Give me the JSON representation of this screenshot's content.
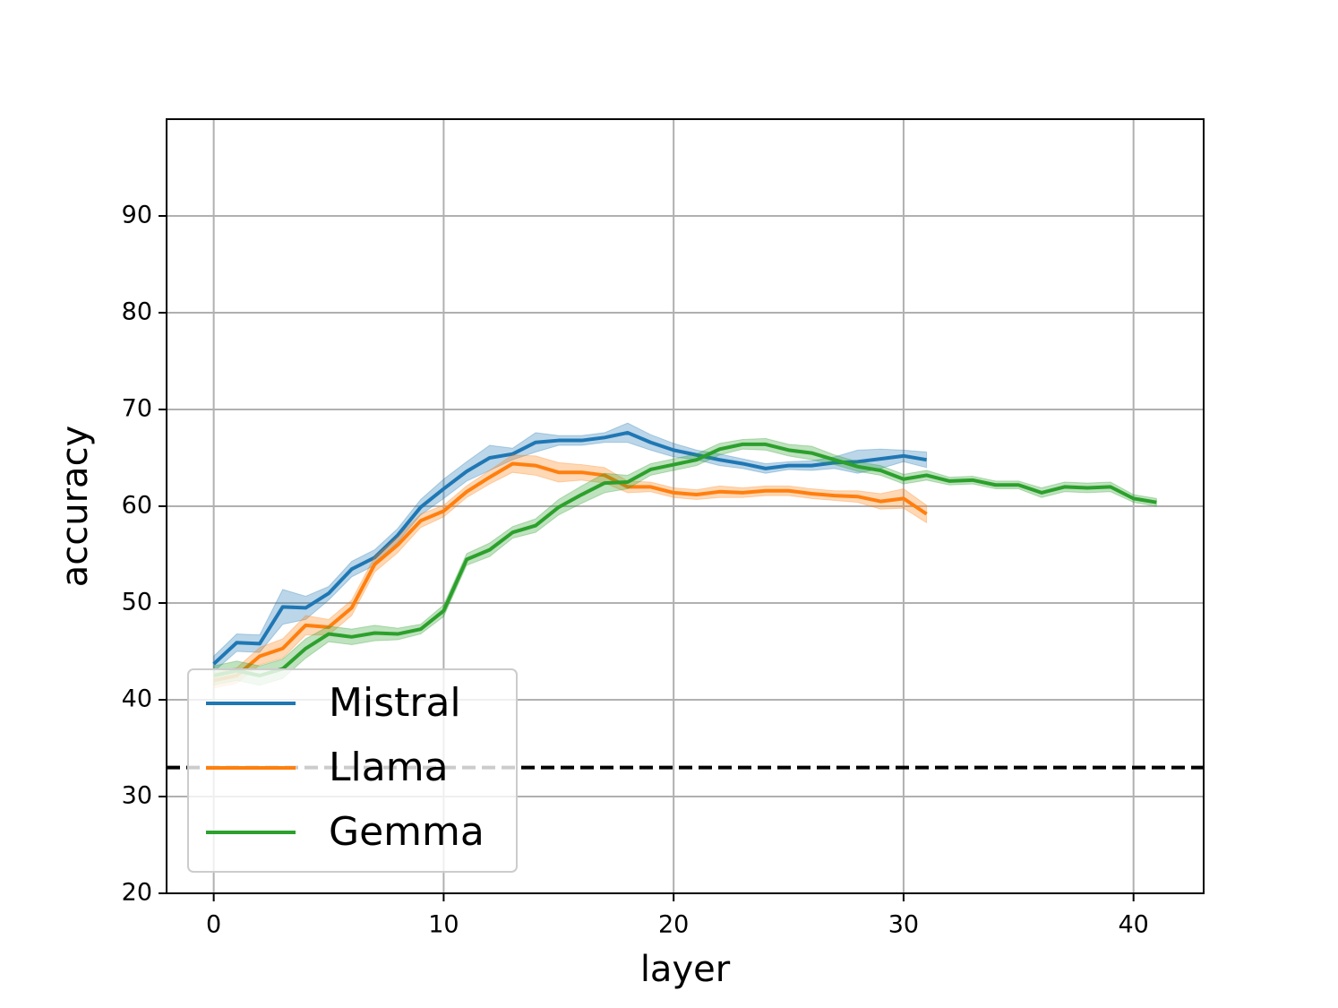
{
  "chart_data": {
    "type": "line",
    "x_label": "layer",
    "y_label": "accuracy",
    "x": [
      0,
      1,
      2,
      3,
      4,
      5,
      6,
      7,
      8,
      9,
      10,
      11,
      12,
      13,
      14,
      15,
      16,
      17,
      18,
      19,
      20,
      21,
      22,
      23,
      24,
      25,
      26,
      27,
      28,
      29,
      30,
      31,
      32,
      33,
      34,
      35,
      36,
      37,
      38,
      39,
      40,
      41
    ],
    "series": [
      {
        "name": "Mistral",
        "color": "#1f77b4",
        "values": [
          43.7,
          45.9,
          45.8,
          49.6,
          49.5,
          51,
          53.5,
          54.7,
          57,
          59.9,
          61.8,
          63.6,
          65,
          65.4,
          66.6,
          66.8,
          66.8,
          67.1,
          67.6,
          66.6,
          65.8,
          65.3,
          64.8,
          64.4,
          63.9,
          64.2,
          64.2,
          64.5,
          64.6,
          64.9,
          65.2,
          64.8,
          null,
          null,
          null,
          null,
          null,
          null,
          null,
          null,
          null,
          null
        ],
        "errors": [
          0.8,
          0.9,
          0.9,
          1.8,
          1.2,
          0.7,
          0.8,
          0.8,
          0.7,
          0.8,
          1,
          1,
          1.3,
          0.6,
          1,
          0.5,
          0.5,
          0.5,
          1,
          0.8,
          0.7,
          0.5,
          0.6,
          0.5,
          0.5,
          0.4,
          0.5,
          0.6,
          1.2,
          1,
          0.6,
          0.8,
          null,
          null,
          null,
          null,
          null,
          null,
          null,
          null,
          null,
          null
        ]
      },
      {
        "name": "Llama",
        "color": "#ff7f0e",
        "values": [
          42,
          42.5,
          44.5,
          45.3,
          47.7,
          47.5,
          49.5,
          54,
          56,
          58.5,
          59.5,
          61.5,
          63,
          64.4,
          64.2,
          63.5,
          63.5,
          63.2,
          62,
          62,
          61.4,
          61.2,
          61.5,
          61.4,
          61.6,
          61.6,
          61.3,
          61.1,
          61,
          60.5,
          60.8,
          59.2,
          null,
          null,
          null,
          null,
          null,
          null,
          null,
          null,
          null,
          null
        ],
        "errors": [
          0.8,
          0.8,
          0.9,
          1,
          1,
          0.8,
          0.8,
          0.8,
          0.8,
          0.7,
          0.6,
          0.6,
          0.7,
          0.9,
          1,
          1,
          0.8,
          0.8,
          0.6,
          0.5,
          0.5,
          0.5,
          0.6,
          0.5,
          0.5,
          0.5,
          0.5,
          0.5,
          0.6,
          0.8,
          1,
          0.9,
          null,
          null,
          null,
          null,
          null,
          null,
          null,
          null,
          null,
          null
        ]
      },
      {
        "name": "Gemma",
        "color": "#2ca02c",
        "values": [
          42.5,
          43,
          42.5,
          43.2,
          45.3,
          46.8,
          46.5,
          46.9,
          46.8,
          47.3,
          49.2,
          54.5,
          55.5,
          57.3,
          58,
          59.9,
          61.2,
          62.4,
          62.5,
          63.8,
          64.3,
          64.8,
          65.9,
          66.4,
          66.4,
          65.8,
          65.5,
          64.8,
          64.1,
          63.7,
          62.8,
          63.2,
          62.6,
          62.7,
          62.2,
          62.2,
          61.4,
          62,
          61.9,
          62,
          60.8,
          60.4
        ],
        "errors": [
          1,
          1,
          1,
          1,
          1,
          0.8,
          0.8,
          0.8,
          0.6,
          0.5,
          0.6,
          0.6,
          0.7,
          0.6,
          0.7,
          0.8,
          0.9,
          1,
          0.7,
          0.6,
          0.6,
          0.6,
          0.6,
          0.5,
          0.6,
          0.6,
          0.7,
          0.5,
          0.5,
          0.5,
          0.5,
          0.5,
          0.4,
          0.4,
          0.4,
          0.4,
          0.5,
          0.5,
          0.5,
          0.5,
          0.4,
          0.4
        ]
      }
    ],
    "hline": 33,
    "xlim": [
      -2.05,
      43.05
    ],
    "xticks": [
      0,
      10,
      20,
      30,
      40
    ],
    "ylim": [
      20,
      100
    ],
    "yticks": [
      20,
      30,
      40,
      50,
      60,
      70,
      80,
      90
    ],
    "grid": true,
    "legend": "lower left"
  }
}
